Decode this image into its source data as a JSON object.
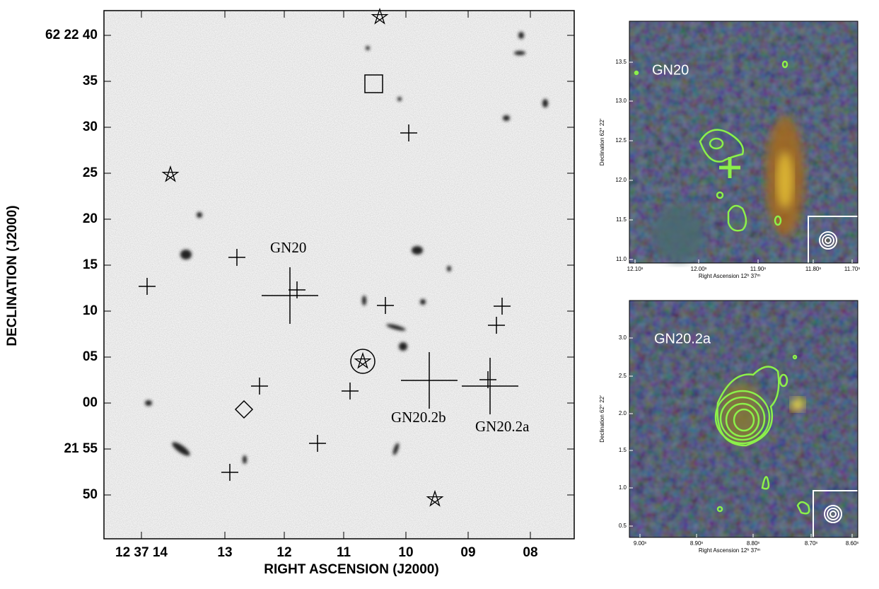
{
  "main_panel": {
    "x_axis": {
      "label": "RIGHT ASCENSION (J2000)",
      "ticks": [
        "12 37 14",
        "13",
        "12",
        "11",
        "10",
        "09",
        "08"
      ]
    },
    "y_axis": {
      "label": "DECLINATION (J2000)",
      "ticks": [
        "62 22 40",
        "35",
        "30",
        "25",
        "20",
        "15",
        "10",
        "05",
        "00",
        "21 55",
        "50"
      ]
    },
    "annotations": [
      "GN20",
      "GN20.2b",
      "GN20.2a"
    ]
  },
  "inset_top": {
    "label": "GN20",
    "x_axis": {
      "label": "Right Ascension 12ʰ 37ᵐ",
      "ticks": [
        "12.10ˢ",
        "12.00ˢ",
        "11.90ˢ",
        "11.80ˢ",
        "11.70ˢ"
      ]
    },
    "y_axis": {
      "label": "Declination 62° 22′",
      "ticks": [
        "13.5",
        "13.0",
        "12.5",
        "12.0",
        "11.5",
        "11.0"
      ]
    }
  },
  "inset_bottom": {
    "label": "GN20.2a",
    "x_axis": {
      "label": "Right Ascension 12ʰ 37ᵐ",
      "ticks": [
        "9.00ˢ",
        "8.90ˢ",
        "8.80ˢ",
        "8.70ˢ",
        "8.60ˢ"
      ]
    },
    "y_axis": {
      "label": "Declination 62° 22′",
      "ticks": [
        "3.0",
        "2.5",
        "2.0",
        "1.5",
        "1.0",
        "0.5"
      ]
    }
  }
}
